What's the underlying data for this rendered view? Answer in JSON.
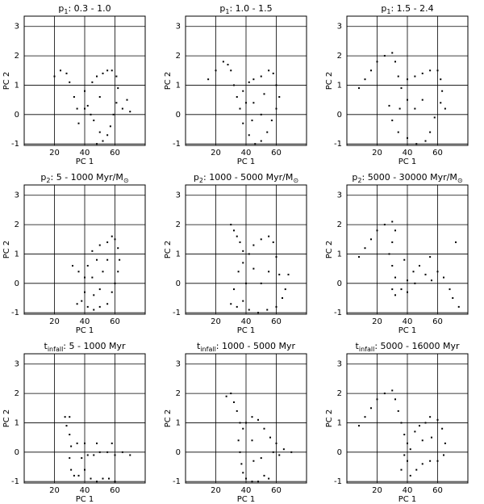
{
  "chart_data": [
    {
      "type": "scatter",
      "title": {
        "symbol": "p",
        "subscript": "1",
        "text": ": 0.3 - 1.0"
      },
      "xlabel": "PC 1",
      "ylabel": "PC 2",
      "xlim": [
        0,
        80
      ],
      "ylim": [
        -1.05,
        3.35
      ],
      "xticks": [
        20,
        40,
        60
      ],
      "yticks": [
        -1,
        0,
        1,
        2,
        3
      ],
      "grid": true,
      "color": "#000000",
      "x": [
        20,
        24,
        28,
        30,
        33,
        35,
        36,
        40,
        42,
        45,
        48,
        50,
        52,
        55,
        58,
        61,
        62,
        61,
        59,
        57,
        55,
        52,
        50,
        46,
        44,
        40,
        65,
        68,
        70,
        48
      ],
      "y": [
        1.3,
        1.5,
        1.4,
        1.1,
        0.6,
        0.2,
        -0.3,
        0.8,
        0.3,
        1.1,
        1.3,
        0.6,
        1.4,
        1.5,
        1.5,
        1.3,
        0.9,
        0.4,
        0,
        -0.4,
        -0.7,
        -0.9,
        -0.6,
        -0.2,
        0,
        0.2,
        0.2,
        0.5,
        0.1,
        -1.0
      ]
    },
    {
      "type": "scatter",
      "title": {
        "symbol": "p",
        "subscript": "1",
        "text": ": 1.0 - 1.5"
      },
      "xlabel": "PC 1",
      "ylabel": "PC 2",
      "xlim": [
        0,
        80
      ],
      "ylim": [
        -1.05,
        3.35
      ],
      "xticks": [
        20,
        40,
        60
      ],
      "yticks": [
        -1,
        0,
        1,
        2,
        3
      ],
      "grid": true,
      "color": "#000000",
      "x": [
        15,
        20,
        25,
        28,
        30,
        32,
        34,
        38,
        42,
        45,
        50,
        55,
        58,
        60,
        62,
        60,
        57,
        54,
        50,
        46,
        42,
        38,
        36,
        45,
        50,
        44,
        52,
        40
      ],
      "y": [
        1.2,
        1.5,
        1.8,
        1.7,
        1.5,
        1.0,
        0.6,
        0.8,
        1.1,
        1.2,
        1.3,
        1.5,
        1.4,
        1.0,
        0.6,
        0.2,
        -0.2,
        -0.6,
        -0.9,
        -1.0,
        -0.7,
        -0.3,
        0.2,
        0.4,
        0,
        -0.2,
        0.7,
        0.4
      ]
    },
    {
      "type": "scatter",
      "title": {
        "symbol": "p",
        "subscript": "1",
        "text": ": 1.5 - 2.4"
      },
      "xlabel": "PC 1",
      "ylabel": "PC 2",
      "xlim": [
        0,
        80
      ],
      "ylim": [
        -1.05,
        3.35
      ],
      "xticks": [
        20,
        40,
        60
      ],
      "yticks": [
        -1,
        0,
        1,
        2,
        3
      ],
      "grid": true,
      "color": "#000000",
      "x": [
        8,
        12,
        16,
        20,
        25,
        30,
        32,
        34,
        36,
        40,
        45,
        50,
        55,
        60,
        62,
        63,
        62,
        58,
        55,
        52,
        46,
        40,
        34,
        30,
        28,
        35,
        45,
        50,
        40,
        65
      ],
      "y": [
        0.9,
        1.2,
        1.5,
        1.8,
        2.0,
        2.1,
        1.8,
        1.3,
        0.9,
        1.2,
        1.3,
        1.4,
        1.5,
        1.5,
        1.2,
        0.8,
        0.4,
        -0.1,
        -0.6,
        -0.9,
        -1.0,
        -0.8,
        -0.6,
        -0.2,
        0.3,
        0.2,
        0.2,
        0.5,
        0.5,
        0.2
      ]
    },
    {
      "type": "scatter",
      "title": {
        "symbol": "p",
        "subscript": "2",
        "text": ": 5 - 1000 Myr/M",
        "unit_subscript": "⊙"
      },
      "xlabel": "PC 1",
      "ylabel": "PC 2",
      "xlim": [
        0,
        80
      ],
      "ylim": [
        -1.05,
        3.35
      ],
      "xticks": [
        20,
        40,
        60
      ],
      "yticks": [
        -1,
        0,
        1,
        2,
        3
      ],
      "grid": true,
      "color": "#000000",
      "x": [
        32,
        36,
        40,
        40,
        38,
        35,
        42,
        46,
        50,
        55,
        58,
        60,
        62,
        63,
        62,
        60,
        58,
        55,
        50,
        45,
        48,
        52,
        45,
        50,
        55,
        46,
        42
      ],
      "y": [
        0.6,
        0.4,
        0.2,
        -0.3,
        -0.6,
        -0.7,
        -0.8,
        -0.9,
        -0.8,
        -0.7,
        -0.3,
        0,
        0.4,
        0.8,
        1.2,
        1.5,
        1.6,
        1.4,
        1.3,
        1.1,
        0.8,
        0.4,
        0.2,
        -0.2,
        0.8,
        -0.4,
        0.6
      ]
    },
    {
      "type": "scatter",
      "title": {
        "symbol": "p",
        "subscript": "2",
        "text": ": 1000 - 5000 Myr/M",
        "unit_subscript": "⊙"
      },
      "xlabel": "PC 1",
      "ylabel": "PC 2",
      "xlim": [
        0,
        80
      ],
      "ylim": [
        -1.05,
        3.35
      ],
      "xticks": [
        20,
        40,
        60
      ],
      "yticks": [
        -1,
        0,
        1,
        2,
        3
      ],
      "grid": true,
      "color": "#000000",
      "x": [
        30,
        32,
        34,
        36,
        38,
        38,
        35,
        32,
        30,
        34,
        38,
        42,
        48,
        54,
        60,
        64,
        66,
        62,
        60,
        58,
        55,
        50,
        45,
        42,
        45,
        50,
        40,
        55,
        68
      ],
      "y": [
        2.0,
        1.8,
        1.6,
        1.4,
        1.1,
        0.7,
        0.4,
        -0.2,
        -0.7,
        -0.8,
        -0.6,
        -0.9,
        -1.0,
        -0.9,
        -0.8,
        -0.5,
        -0.2,
        0.3,
        0.9,
        1.4,
        1.6,
        1.5,
        1.3,
        1.0,
        0.5,
        0,
        0,
        0.4,
        0.3
      ]
    },
    {
      "type": "scatter",
      "title": {
        "symbol": "p",
        "subscript": "2",
        "text": ": 5000 - 30000 Myr/M",
        "unit_subscript": "⊙"
      },
      "xlabel": "PC 1",
      "ylabel": "PC 2",
      "xlim": [
        0,
        80
      ],
      "ylim": [
        -1.05,
        3.35
      ],
      "xticks": [
        20,
        40,
        60
      ],
      "yticks": [
        -1,
        0,
        1,
        2,
        3
      ],
      "grid": true,
      "color": "#000000",
      "x": [
        8,
        12,
        16,
        20,
        25,
        30,
        32,
        30,
        28,
        30,
        32,
        30,
        32,
        36,
        40,
        44,
        48,
        52,
        56,
        60,
        64,
        68,
        70,
        74,
        45,
        38,
        55,
        72,
        40
      ],
      "y": [
        0.9,
        1.2,
        1.5,
        1.8,
        2.0,
        2.1,
        1.8,
        1.4,
        1.0,
        0.6,
        0.2,
        -0.2,
        -0.4,
        -0.2,
        0.1,
        0.4,
        0.6,
        0.3,
        0.1,
        0.4,
        0.2,
        -0.2,
        -0.5,
        -0.8,
        0,
        0.8,
        0.9,
        1.4,
        -0.3
      ]
    },
    {
      "type": "scatter",
      "title": {
        "symbol": "t",
        "subscript": "infall",
        "text": ": 5 - 1000 Myr"
      },
      "xlabel": "PC 1",
      "ylabel": "PC 2",
      "xlim": [
        0,
        80
      ],
      "ylim": [
        -1.05,
        3.35
      ],
      "xticks": [
        20,
        40,
        60
      ],
      "yticks": [
        -1,
        0,
        1,
        2,
        3
      ],
      "grid": true,
      "color": "#000000",
      "x": [
        27,
        30,
        28,
        30,
        31,
        30,
        31,
        33,
        36,
        40,
        44,
        48,
        52,
        56,
        60,
        38,
        42,
        46,
        50,
        55,
        60,
        65,
        35,
        40,
        48,
        58,
        70
      ],
      "y": [
        1.2,
        1.2,
        0.9,
        0.6,
        0.2,
        -0.2,
        -0.6,
        -0.8,
        -0.8,
        -0.6,
        -0.9,
        -1.0,
        -0.9,
        -0.9,
        -1.0,
        -0.2,
        -0.1,
        -0.1,
        0,
        0,
        -0.1,
        0,
        0.3,
        0.3,
        0.3,
        0.3,
        -0.1
      ]
    },
    {
      "type": "scatter",
      "title": {
        "symbol": "t",
        "subscript": "infall",
        "text": ": 1000 - 5000 Myr"
      },
      "xlabel": "PC 1",
      "ylabel": "PC 2",
      "xlim": [
        0,
        80
      ],
      "ylim": [
        -1.05,
        3.35
      ],
      "xticks": [
        20,
        40,
        60
      ],
      "yticks": [
        -1,
        0,
        1,
        2,
        3
      ],
      "grid": true,
      "color": "#000000",
      "x": [
        27,
        30,
        32,
        34,
        36,
        38,
        40,
        44,
        48,
        52,
        56,
        60,
        65,
        70,
        35,
        36,
        37,
        38,
        40,
        44,
        48,
        52,
        55,
        45,
        50,
        44,
        58,
        62
      ],
      "y": [
        1.9,
        2.0,
        1.7,
        1.4,
        1.0,
        0.8,
        1.0,
        1.2,
        1.1,
        0.8,
        0.5,
        0.3,
        0.1,
        0,
        0.4,
        0,
        -0.4,
        -0.7,
        -0.9,
        -1.0,
        -1.0,
        -0.8,
        -0.9,
        -0.3,
        -0.2,
        0.4,
        0,
        -0.1
      ]
    },
    {
      "type": "scatter",
      "title": {
        "symbol": "t",
        "subscript": "infall",
        "text": ": 5000 - 16000 Myr"
      },
      "xlabel": "PC 1",
      "ylabel": "PC 2",
      "xlim": [
        0,
        80
      ],
      "ylim": [
        -1.05,
        3.35
      ],
      "xticks": [
        20,
        40,
        60
      ],
      "yticks": [
        -1,
        0,
        1,
        2,
        3
      ],
      "grid": true,
      "color": "#000000",
      "x": [
        8,
        12,
        16,
        20,
        25,
        30,
        32,
        34,
        36,
        38,
        40,
        42,
        40,
        36,
        42,
        46,
        50,
        55,
        60,
        64,
        65,
        63,
        60,
        55,
        52,
        48,
        45,
        50,
        56,
        38
      ],
      "y": [
        0.9,
        1.2,
        1.5,
        1.8,
        2.0,
        2.1,
        1.8,
        1.4,
        1.0,
        0.6,
        0.3,
        0.1,
        -0.3,
        -0.6,
        -0.8,
        -0.6,
        -0.4,
        -0.3,
        -0.3,
        -0.1,
        0.3,
        0.8,
        1.1,
        1.2,
        1.0,
        0.9,
        0.7,
        0.4,
        0.5,
        -0.1
      ]
    }
  ]
}
